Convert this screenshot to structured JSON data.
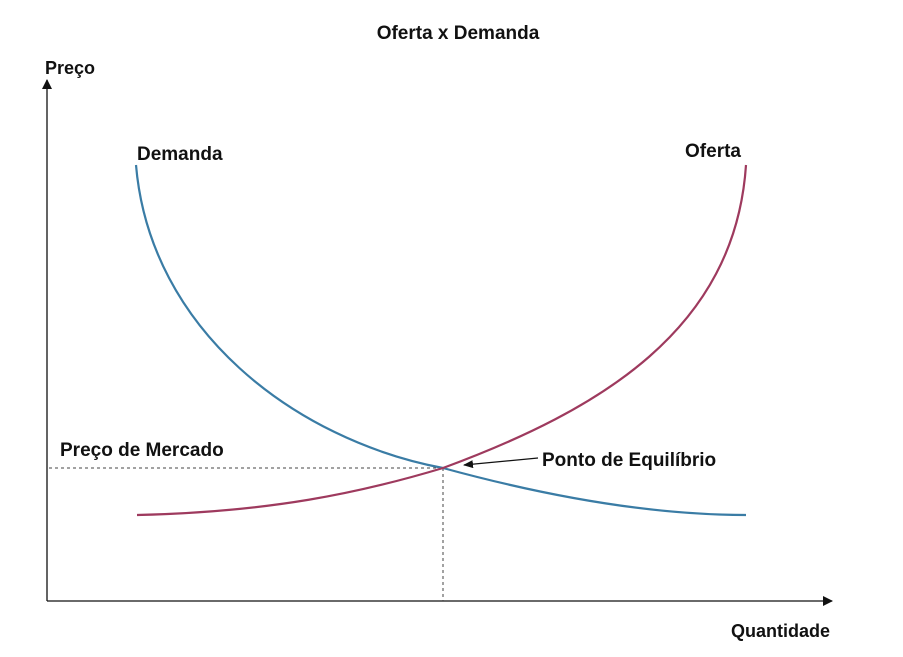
{
  "title": "Oferta x Demanda",
  "axes": {
    "y_label": "Preço",
    "x_label": "Quantidade"
  },
  "curves": {
    "demand": {
      "label": "Demanda",
      "color": "#3a7ca5"
    },
    "supply": {
      "label": "Oferta",
      "color": "#9e3a5e"
    }
  },
  "annotations": {
    "market_price": "Preço de Mercado",
    "equilibrium_point": "Ponto de Equilíbrio"
  },
  "colors": {
    "axis": "#111111",
    "guide": "#444444"
  }
}
